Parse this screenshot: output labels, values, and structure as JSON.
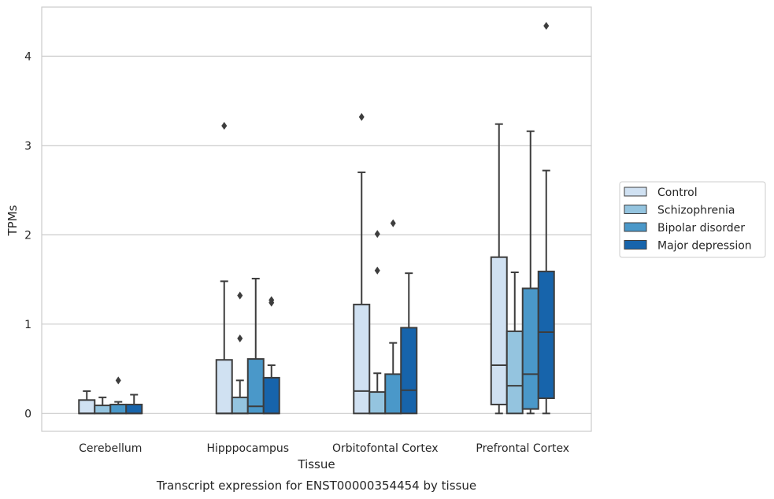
{
  "chart_data": {
    "type": "box",
    "title": "",
    "caption": "Transcript expression for ENST00000354454 by tissue",
    "xlabel": "Tissue",
    "ylabel": "TPMs",
    "ylim": [
      -0.2,
      4.55
    ],
    "yticks": [
      0,
      1,
      2,
      3,
      4
    ],
    "grid": true,
    "legend_position": "right",
    "categories": [
      "Cerebellum",
      "Hipppocampus",
      "Orbitofontal Cortex",
      "Prefrontal Cortex"
    ],
    "series": [
      {
        "name": "Control",
        "color": "#d0e1f2",
        "boxes": [
          {
            "whislo": 0,
            "q1": 0,
            "med": 0,
            "q3": 0.15,
            "whishi": 0.25,
            "fliers": []
          },
          {
            "whislo": 0,
            "q1": 0,
            "med": 0,
            "q3": 0.6,
            "whishi": 1.48,
            "fliers": [
              3.22
            ]
          },
          {
            "whislo": 0,
            "q1": 0,
            "med": 0.25,
            "q3": 1.22,
            "whishi": 2.7,
            "fliers": [
              3.32
            ]
          },
          {
            "whislo": 0,
            "q1": 0.1,
            "med": 0.54,
            "q3": 1.75,
            "whishi": 3.24,
            "fliers": []
          }
        ]
      },
      {
        "name": "Schizophrenia",
        "color": "#94c4df",
        "boxes": [
          {
            "whislo": 0,
            "q1": 0,
            "med": 0,
            "q3": 0.09,
            "whishi": 0.18,
            "fliers": []
          },
          {
            "whislo": 0,
            "q1": 0,
            "med": 0,
            "q3": 0.18,
            "whishi": 0.37,
            "fliers": [
              0.84,
              1.32
            ]
          },
          {
            "whislo": 0,
            "q1": 0,
            "med": 0,
            "q3": 0.24,
            "whishi": 0.45,
            "fliers": [
              1.6,
              2.01
            ]
          },
          {
            "whislo": 0,
            "q1": 0,
            "med": 0.31,
            "q3": 0.92,
            "whishi": 1.58,
            "fliers": []
          }
        ]
      },
      {
        "name": "Bipolar disorder",
        "color": "#4a98c9",
        "boxes": [
          {
            "whislo": 0,
            "q1": 0,
            "med": 0,
            "q3": 0.1,
            "whishi": 0.13,
            "fliers": [
              0.37
            ]
          },
          {
            "whislo": 0,
            "q1": 0,
            "med": 0.08,
            "q3": 0.61,
            "whishi": 1.51,
            "fliers": []
          },
          {
            "whislo": 0,
            "q1": 0,
            "med": 0,
            "q3": 0.44,
            "whishi": 0.79,
            "fliers": [
              2.13
            ]
          },
          {
            "whislo": 0,
            "q1": 0.05,
            "med": 0.44,
            "q3": 1.4,
            "whishi": 3.16,
            "fliers": []
          }
        ]
      },
      {
        "name": "Major depression",
        "color": "#1764ab",
        "boxes": [
          {
            "whislo": 0,
            "q1": 0,
            "med": 0,
            "q3": 0.1,
            "whishi": 0.21,
            "fliers": []
          },
          {
            "whislo": 0,
            "q1": 0,
            "med": 0,
            "q3": 0.4,
            "whishi": 0.54,
            "fliers": [
              1.24,
              1.27
            ]
          },
          {
            "whislo": 0,
            "q1": 0,
            "med": 0.26,
            "q3": 0.96,
            "whishi": 1.57,
            "fliers": []
          },
          {
            "whislo": 0,
            "q1": 0.17,
            "med": 0.91,
            "q3": 1.59,
            "whishi": 2.72,
            "fliers": [
              4.34
            ]
          }
        ]
      }
    ]
  }
}
